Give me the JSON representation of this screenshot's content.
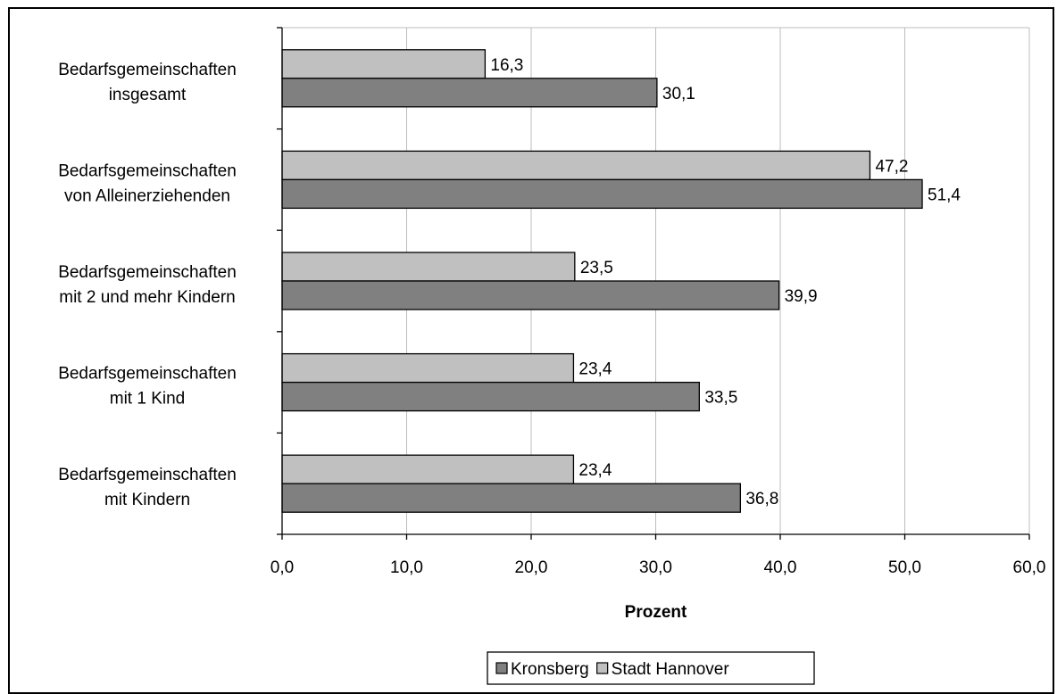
{
  "chart_data": {
    "type": "bar",
    "orientation": "horizontal",
    "categories": [
      [
        "Bedarfsgemeinschaften",
        "insgesamt"
      ],
      [
        "Bedarfsgemeinschaften",
        "von Alleinerziehenden"
      ],
      [
        "Bedarfsgemeinschaften",
        "mit 2 und mehr Kindern"
      ],
      [
        "Bedarfsgemeinschaften",
        "mit 1 Kind"
      ],
      [
        "Bedarfsgemeinschaften",
        "mit Kindern"
      ]
    ],
    "series": [
      {
        "name": "Stadt Hannover",
        "color": "#c0c0c0",
        "values": [
          16.3,
          47.2,
          23.5,
          23.4,
          23.4
        ],
        "labels": [
          "16,3",
          "47,2",
          "23,5",
          "23,4",
          "23,4"
        ]
      },
      {
        "name": "Kronsberg",
        "color": "#808080",
        "values": [
          30.1,
          51.4,
          39.9,
          33.5,
          36.8
        ],
        "labels": [
          "30,1",
          "51,4",
          "39,9",
          "33,5",
          "36,8"
        ]
      }
    ],
    "xlim": [
      0,
      60
    ],
    "xticks": [
      0,
      10,
      20,
      30,
      40,
      50,
      60
    ],
    "xtick_labels": [
      "0,0",
      "10,0",
      "20,0",
      "30,0",
      "40,0",
      "50,0",
      "60,0"
    ],
    "xlabel": "Prozent",
    "ylabel": "",
    "title": "",
    "grid": true,
    "legend": {
      "position": "bottom",
      "entries": [
        {
          "name": "Kronsberg",
          "color": "#808080"
        },
        {
          "name": "Stadt Hannover",
          "color": "#c0c0c0"
        }
      ]
    }
  }
}
